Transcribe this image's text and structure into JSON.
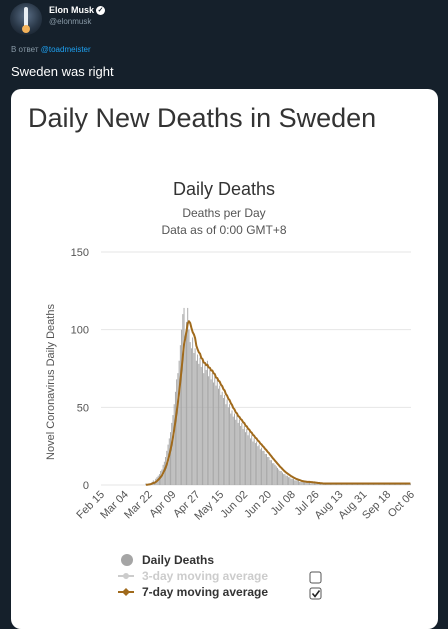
{
  "author": {
    "name": "Elon Musk",
    "handle": "@elonmusk"
  },
  "reply": {
    "prefix": "В ответ",
    "mention": "@toadmeister"
  },
  "tweet": {
    "text": "Sweden was right"
  },
  "card": {
    "heading": "Daily New Deaths in Sweden"
  },
  "colors": {
    "bars": "#a5a5a5",
    "line": "#a06a1c",
    "background": "#15202b",
    "link": "#1da1f2"
  },
  "chart_data": {
    "type": "bar",
    "title": "Daily Deaths",
    "subtitle": "Deaths per Day",
    "subtitle2": "Data as of 0:00 GMT+8",
    "ylabel": "Novel Coronavirus Daily Deaths",
    "xlabel": "",
    "ylim": [
      0,
      150
    ],
    "yticks": [
      0,
      50,
      100,
      150
    ],
    "grid": true,
    "x_tick_labels": [
      "Feb 15",
      "Mar 04",
      "Mar 22",
      "Apr 09",
      "Apr 27",
      "May 15",
      "Jun 02",
      "Jun 20",
      "Jul 08",
      "Jul 26",
      "Aug 13",
      "Aug 31",
      "Sep 18",
      "Oct 06"
    ],
    "x_start": "Feb 15",
    "daily_deaths": [
      0,
      0,
      0,
      0,
      0,
      0,
      0,
      0,
      0,
      0,
      0,
      0,
      0,
      0,
      0,
      0,
      0,
      0,
      0,
      0,
      0,
      0,
      0,
      0,
      0,
      0,
      0,
      0,
      0,
      0,
      0,
      0,
      0,
      0,
      0,
      0,
      1,
      0,
      1,
      1,
      1,
      2,
      3,
      2,
      4,
      5,
      6,
      7,
      9,
      10,
      13,
      15,
      18,
      22,
      26,
      30,
      34,
      40,
      45,
      52,
      60,
      68,
      72,
      80,
      90,
      100,
      110,
      114,
      95,
      105,
      114,
      100,
      92,
      88,
      95,
      85,
      88,
      80,
      84,
      78,
      82,
      76,
      80,
      72,
      78,
      74,
      80,
      70,
      74,
      68,
      72,
      66,
      70,
      64,
      68,
      62,
      64,
      58,
      60,
      56,
      58,
      52,
      55,
      50,
      52,
      46,
      48,
      44,
      46,
      42,
      45,
      40,
      42,
      38,
      40,
      36,
      38,
      34,
      36,
      32,
      34,
      30,
      32,
      28,
      30,
      27,
      28,
      25,
      26,
      23,
      24,
      22,
      22,
      20,
      20,
      18,
      18,
      16,
      16,
      14,
      14,
      13,
      12,
      11,
      10,
      9,
      9,
      8,
      7,
      7,
      6,
      6,
      5,
      5,
      4,
      4,
      4,
      3,
      3,
      3,
      3,
      2,
      2,
      2,
      2,
      2,
      2,
      2,
      2,
      2,
      1,
      2,
      1,
      2,
      1,
      1,
      1,
      1,
      1,
      1,
      1,
      1,
      1,
      1,
      1,
      1,
      1,
      1,
      1,
      1,
      1,
      1,
      1,
      1,
      1,
      1,
      1,
      1,
      1,
      1,
      1,
      1,
      1,
      1,
      1,
      1,
      1,
      1,
      1,
      1,
      1,
      1,
      1,
      1,
      1,
      1,
      1,
      1,
      1,
      1,
      1,
      1,
      1,
      1,
      1,
      1,
      1,
      1,
      1,
      1,
      1,
      1,
      1,
      1,
      1,
      1,
      1,
      1,
      1,
      1,
      1,
      1,
      1,
      1,
      1,
      1,
      1,
      1,
      1,
      1,
      1,
      1
    ],
    "series": [
      {
        "name": "Daily Deaths",
        "color": "#a5a5a5"
      },
      {
        "name": "3-day moving average",
        "color": "#cccccc",
        "enabled": false
      },
      {
        "name": "7-day moving average",
        "color": "#a06a1c",
        "enabled": true
      }
    ],
    "legend_position": "bottom-center"
  }
}
